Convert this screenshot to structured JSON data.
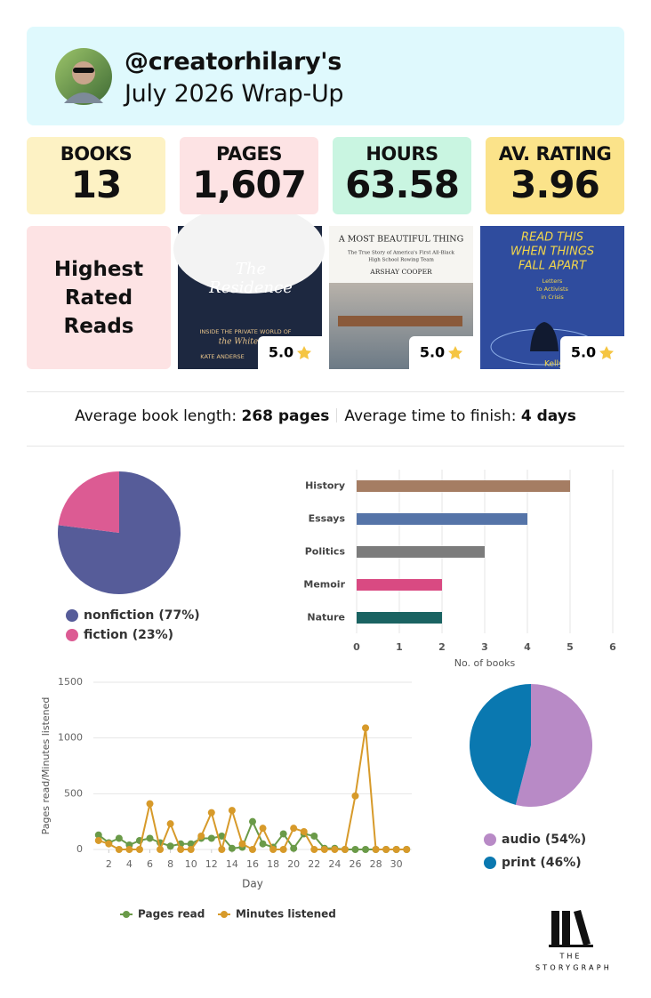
{
  "header": {
    "handle": "@creatorhilary's",
    "title": "July 2026 Wrap-Up"
  },
  "stats": [
    {
      "label": "BOOKS",
      "value": "13"
    },
    {
      "label": "PAGES",
      "value": "1,607"
    },
    {
      "label": "HOURS",
      "value": "63.58"
    },
    {
      "label": "AV. RATING",
      "value": "3.96"
    }
  ],
  "highlights": {
    "title": "Highest Rated Reads",
    "books": [
      {
        "cover_text": [
          "The",
          "Residence",
          "INSIDE THE PRIVATE WORLD OF",
          "the White",
          "KATE ANDERSE"
        ],
        "rating": "5.0"
      },
      {
        "cover_text": [
          "A MOST BEAUTIFUL THING",
          "The True Story of America's First All-Black",
          "High School Rowing Team",
          "ARSHAY COOPER"
        ],
        "rating": "5.0"
      },
      {
        "cover_text": [
          "READ THIS",
          "WHEN THINGS",
          "FALL APART",
          "Letters",
          "to Activists",
          "in Crisis",
          "Kelly H"
        ],
        "rating": "5.0"
      }
    ]
  },
  "summary": {
    "length_label": "Average book length:",
    "length_value": "268 pages",
    "finish_label": "Average time to finish:",
    "finish_value": "4 days"
  },
  "chart_data": [
    {
      "type": "pie",
      "categories": [
        "nonfiction",
        "fiction"
      ],
      "values": [
        77,
        23
      ],
      "value_labels": [
        "(77%)",
        "(23%)"
      ],
      "colors": [
        "#565c99",
        "#dc5b93"
      ]
    },
    {
      "type": "bar",
      "orientation": "horizontal",
      "categories": [
        "History",
        "Essays",
        "Politics",
        "Memoir",
        "Nature"
      ],
      "values": [
        5,
        4,
        3,
        2,
        2
      ],
      "colors": [
        "#a57d63",
        "#5574a8",
        "#7c7c7c",
        "#d94a82",
        "#1a6362"
      ],
      "xlim": [
        0,
        6
      ],
      "xticks": [
        0,
        1,
        2,
        3,
        4,
        5,
        6
      ],
      "xlabel": "No. of books",
      "grid": true
    },
    {
      "type": "line",
      "x": [
        1,
        2,
        3,
        4,
        5,
        6,
        7,
        8,
        9,
        10,
        11,
        12,
        13,
        14,
        15,
        16,
        17,
        18,
        19,
        20,
        21,
        22,
        23,
        24,
        25,
        26,
        27,
        28,
        29,
        30,
        31
      ],
      "series": [
        {
          "name": "Pages read",
          "color": "#6a9a48",
          "values": [
            130,
            60,
            100,
            40,
            80,
            100,
            60,
            30,
            50,
            50,
            100,
            100,
            120,
            10,
            20,
            250,
            50,
            20,
            140,
            10,
            140,
            120,
            10,
            10,
            0,
            0,
            0,
            0,
            0,
            0,
            0
          ]
        },
        {
          "name": "Minutes listened",
          "color": "#d79a2a",
          "values": [
            80,
            50,
            0,
            0,
            0,
            410,
            0,
            230,
            0,
            0,
            120,
            330,
            0,
            350,
            50,
            0,
            190,
            0,
            0,
            190,
            160,
            0,
            0,
            0,
            0,
            480,
            1090,
            0,
            0,
            0,
            0
          ]
        }
      ],
      "xlim": [
        0.5,
        31.5
      ],
      "xticks": [
        2,
        4,
        6,
        8,
        10,
        12,
        14,
        16,
        18,
        20,
        22,
        24,
        26,
        28,
        30
      ],
      "ylim": [
        0,
        1500
      ],
      "yticks": [
        0,
        500,
        1000,
        1500
      ],
      "xlabel": "Day",
      "ylabel": "Pages read/Minutes listened",
      "grid": true,
      "legend": "bottom"
    },
    {
      "type": "pie",
      "categories": [
        "audio",
        "print"
      ],
      "values": [
        54,
        46
      ],
      "value_labels": [
        "(54%)",
        "(46%)"
      ],
      "colors": [
        "#b88ac6",
        "#0a78b0"
      ]
    }
  ],
  "logo": {
    "line1": "THE",
    "line2": "STORYGRAPH"
  }
}
